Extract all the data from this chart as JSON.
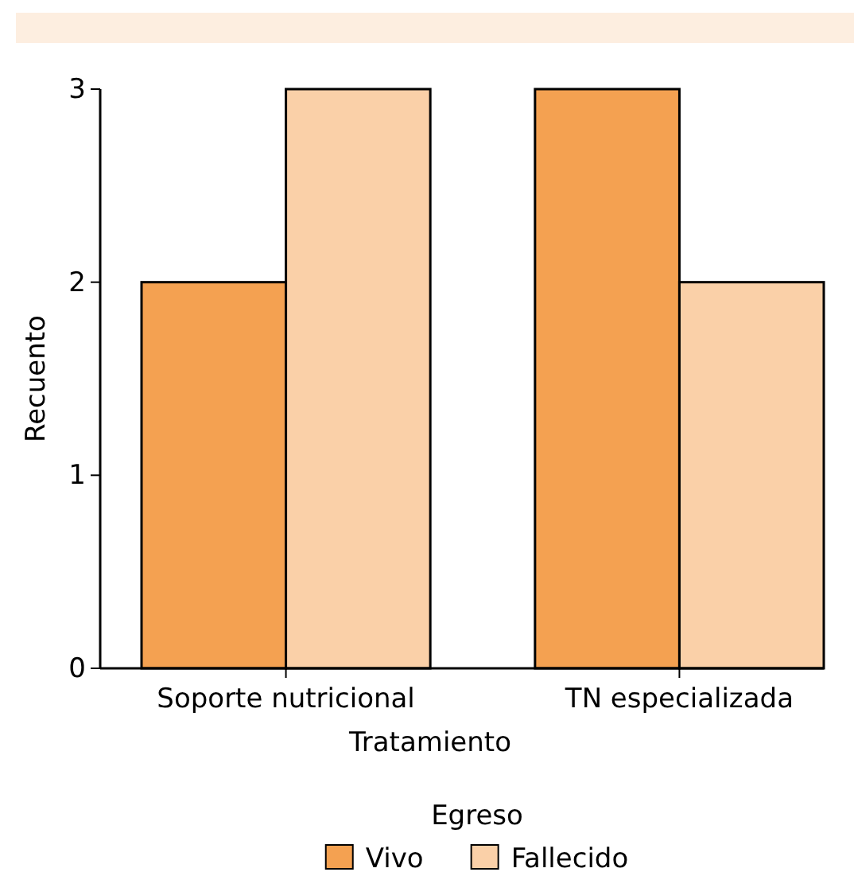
{
  "chart_data": {
    "type": "bar",
    "xlabel": "Tratamiento",
    "ylabel": "Recuento",
    "legend_title": "Egreso",
    "categories": [
      "Soporte nutricional",
      "TN especializada"
    ],
    "series": [
      {
        "name": "Vivo",
        "color": "#f4a151",
        "values": [
          2,
          3
        ]
      },
      {
        "name": "Fallecido",
        "color": "#fad0a8",
        "values": [
          3,
          2
        ]
      }
    ],
    "ylim": [
      0,
      3
    ],
    "yticks": [
      0,
      1,
      2,
      3
    ],
    "grid": false,
    "legend": "bottom"
  }
}
